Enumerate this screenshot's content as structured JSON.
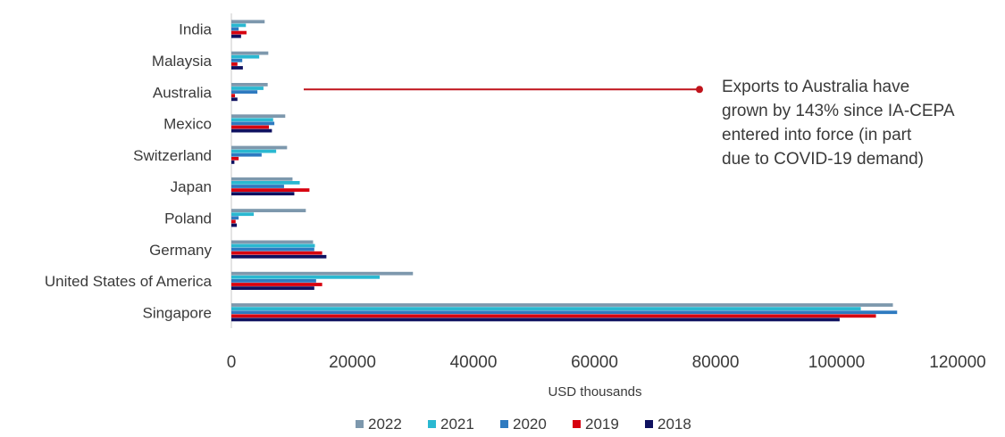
{
  "chart_data": {
    "type": "bar",
    "orientation": "horizontal",
    "categories": [
      "Singapore",
      "United States of America",
      "Germany",
      "Poland",
      "Japan",
      "Switzerland",
      "Mexico",
      "Australia",
      "Malaysia",
      "India"
    ],
    "series": [
      {
        "name": "2022",
        "color": "#7d98ad",
        "values": [
          109300,
          30000,
          13500,
          12300,
          10100,
          9200,
          8900,
          6000,
          6100,
          5500
        ]
      },
      {
        "name": "2021",
        "color": "#2ab8d1",
        "values": [
          104000,
          24500,
          13800,
          3700,
          11300,
          7400,
          6900,
          5300,
          4600,
          2400
        ]
      },
      {
        "name": "2020",
        "color": "#2e7ac0",
        "values": [
          110000,
          14000,
          13700,
          1200,
          8700,
          5000,
          7100,
          4300,
          1800,
          1200
        ]
      },
      {
        "name": "2019",
        "color": "#d7000f",
        "values": [
          106500,
          15000,
          15000,
          700,
          12900,
          1200,
          6200,
          600,
          1000,
          2500
        ]
      },
      {
        "name": "2018",
        "color": "#0f1160",
        "values": [
          100500,
          13700,
          15700,
          900,
          10400,
          500,
          6700,
          1000,
          1900,
          1600
        ]
      }
    ],
    "xlabel": "USD thousands",
    "ylabel": "",
    "xlim": [
      0,
      120000
    ],
    "xticks": [
      0,
      20000,
      40000,
      60000,
      80000,
      100000,
      120000
    ],
    "grid": false,
    "legend_position": "bottom",
    "annotation": {
      "target": "Australia",
      "lines": [
        "Exports to Australia have",
        "grown by 143% since IA-CEPA",
        "entered into force (in part",
        "due to COVID-19 demand)"
      ],
      "color": "#c0141c"
    }
  }
}
